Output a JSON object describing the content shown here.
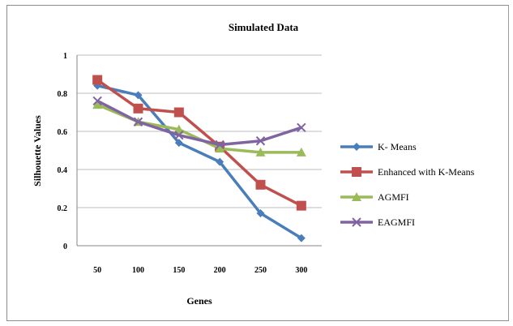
{
  "chart_data": {
    "type": "line",
    "title": "Simulated Data",
    "xlabel": "Genes",
    "ylabel": "Silhouette Values",
    "categories": [
      "50",
      "100",
      "150",
      "200",
      "250",
      "300"
    ],
    "ylim": [
      0,
      1
    ],
    "yticks": [
      "0",
      "0.2",
      "0.4",
      "0.6",
      "0.8",
      "1"
    ],
    "grid": true,
    "legend_position": "right",
    "series": [
      {
        "name": "K- Means",
        "values": [
          0.84,
          0.79,
          0.54,
          0.44,
          0.17,
          0.04
        ],
        "color": "#4a7ebb",
        "marker": "diamond"
      },
      {
        "name": "Enhanced with K-Means",
        "values": [
          0.87,
          0.72,
          0.7,
          0.52,
          0.32,
          0.21
        ],
        "color": "#c0504d",
        "marker": "square"
      },
      {
        "name": "AGMFI",
        "values": [
          0.74,
          0.65,
          0.61,
          0.51,
          0.49,
          0.49
        ],
        "color": "#9bbb59",
        "marker": "triangle"
      },
      {
        "name": "EAGMFI",
        "values": [
          0.76,
          0.65,
          0.58,
          0.53,
          0.55,
          0.62
        ],
        "color": "#8064a2",
        "marker": "x"
      }
    ]
  }
}
